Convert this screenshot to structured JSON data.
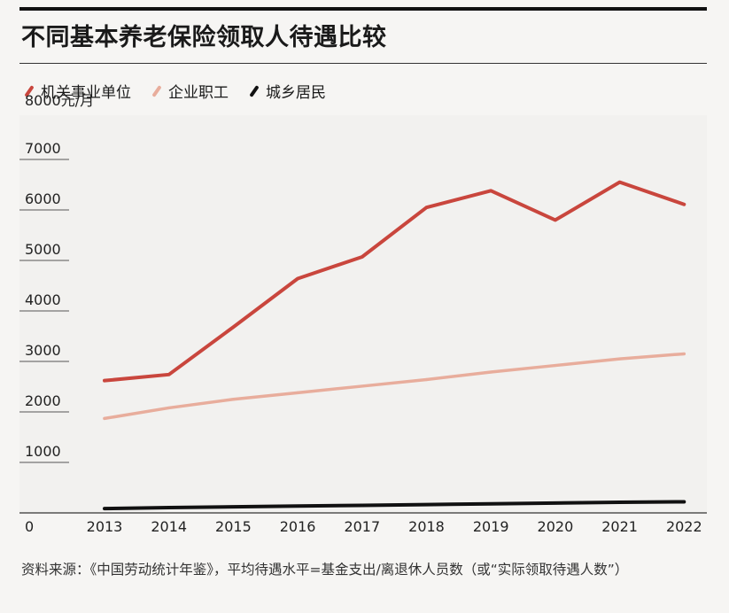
{
  "title": "不同基本养老保险领取人待遇比较",
  "footnote": "资料来源：《中国劳动统计年鉴》，平均待遇水平=基金支出/离退休人员数（或“实际领取待遇人数”）",
  "colors": {
    "series_1": "#c9463d",
    "series_2": "#e8ad9c",
    "series_3": "#111111"
  },
  "chart_data": {
    "type": "line",
    "title": "不同基本养老保险领取人待遇比较",
    "ylabel": "8000元/月",
    "x": [
      "2013",
      "2014",
      "2015",
      "2016",
      "2017",
      "2018",
      "2019",
      "2020",
      "2021",
      "2022"
    ],
    "y_ticks": [
      "0",
      "1000",
      "2000",
      "3000",
      "4000",
      "5000",
      "6000",
      "7000"
    ],
    "ylim": [
      0,
      8000
    ],
    "legend_position": "top-left",
    "grid": false,
    "series": [
      {
        "name": "机关事业单位",
        "values": [
          2620,
          2740,
          3680,
          4640,
          5070,
          6050,
          6380,
          5800,
          6550,
          6110
        ]
      },
      {
        "name": "企业职工",
        "values": [
          1870,
          2080,
          2250,
          2380,
          2510,
          2640,
          2790,
          2920,
          3050,
          3150
        ]
      },
      {
        "name": "城乡居民",
        "values": [
          85,
          105,
          120,
          135,
          150,
          165,
          180,
          195,
          210,
          220
        ]
      }
    ]
  }
}
